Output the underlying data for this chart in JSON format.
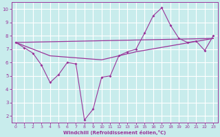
{
  "xlabel": "Windchill (Refroidissement éolien,°C)",
  "background_color": "#c8ecec",
  "grid_color": "#b0d8d8",
  "line_color": "#993399",
  "xlim": [
    -0.5,
    23.5
  ],
  "ylim": [
    1.5,
    10.5
  ],
  "xticks": [
    0,
    1,
    2,
    3,
    4,
    5,
    6,
    7,
    8,
    9,
    10,
    11,
    12,
    13,
    14,
    15,
    16,
    17,
    18,
    19,
    20,
    21,
    22,
    23
  ],
  "yticks": [
    2,
    3,
    4,
    5,
    6,
    7,
    8,
    9,
    10
  ],
  "main_x": [
    0,
    1,
    2,
    3,
    4,
    5,
    6,
    7,
    8,
    9,
    10,
    11,
    12,
    13,
    14,
    15,
    16,
    17,
    18,
    19,
    20,
    21,
    22,
    23
  ],
  "main_y": [
    7.5,
    7.1,
    6.7,
    5.8,
    4.5,
    5.1,
    6.0,
    5.9,
    1.7,
    2.5,
    4.9,
    5.0,
    6.5,
    6.8,
    7.0,
    8.2,
    9.5,
    10.1,
    8.8,
    7.8,
    7.5,
    7.6,
    6.9,
    8.0
  ],
  "trend1_x": [
    0,
    23
  ],
  "trend1_y": [
    7.5,
    7.8
  ],
  "trend2_x": [
    0,
    4,
    10,
    14,
    23
  ],
  "trend2_y": [
    7.5,
    6.5,
    6.2,
    6.8,
    7.8
  ]
}
